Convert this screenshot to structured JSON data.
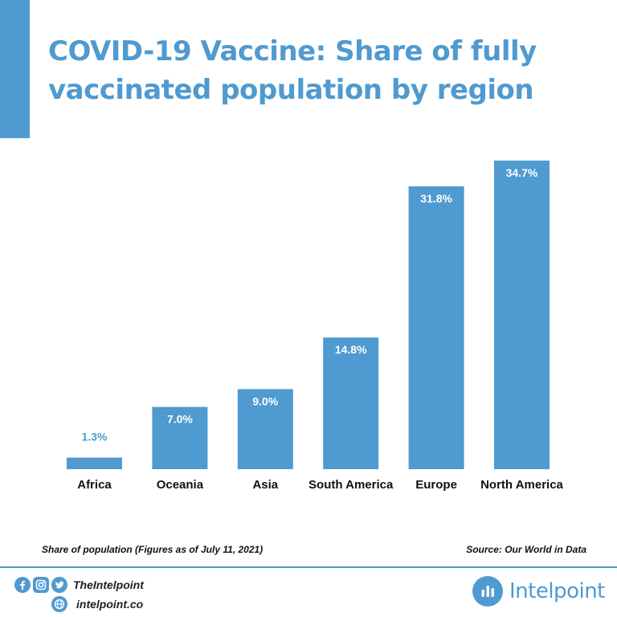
{
  "title": "COVID-19 Vaccine: Share of fully vaccinated population by region",
  "chart_data": {
    "type": "bar",
    "title": "COVID-19 Vaccine: Share of fully vaccinated population by region",
    "categories": [
      "Africa",
      "Oceania",
      "Asia",
      "South America",
      "Europe",
      "North America"
    ],
    "values": [
      1.3,
      7.0,
      9.0,
      14.8,
      31.8,
      34.7
    ],
    "value_labels": [
      "1.3%",
      "7.0%",
      "9.0%",
      "14.8%",
      "31.8%",
      "34.7%"
    ],
    "unit": "%",
    "ylim": [
      0,
      35
    ],
    "grid": false,
    "legend": "none",
    "bar_color": "#4f9ad0"
  },
  "footnote": "Share of population (Figures as of July 11, 2021)",
  "source": "Source: Our World in Data",
  "footer": {
    "handle": "TheIntelpoint",
    "website": "intelpoint.co",
    "brand": "Intelpoint",
    "icons": [
      "facebook-icon",
      "instagram-icon",
      "twitter-icon",
      "globe-icon"
    ]
  },
  "colors": {
    "accent": "#4f9ad0",
    "text": "#111111"
  }
}
